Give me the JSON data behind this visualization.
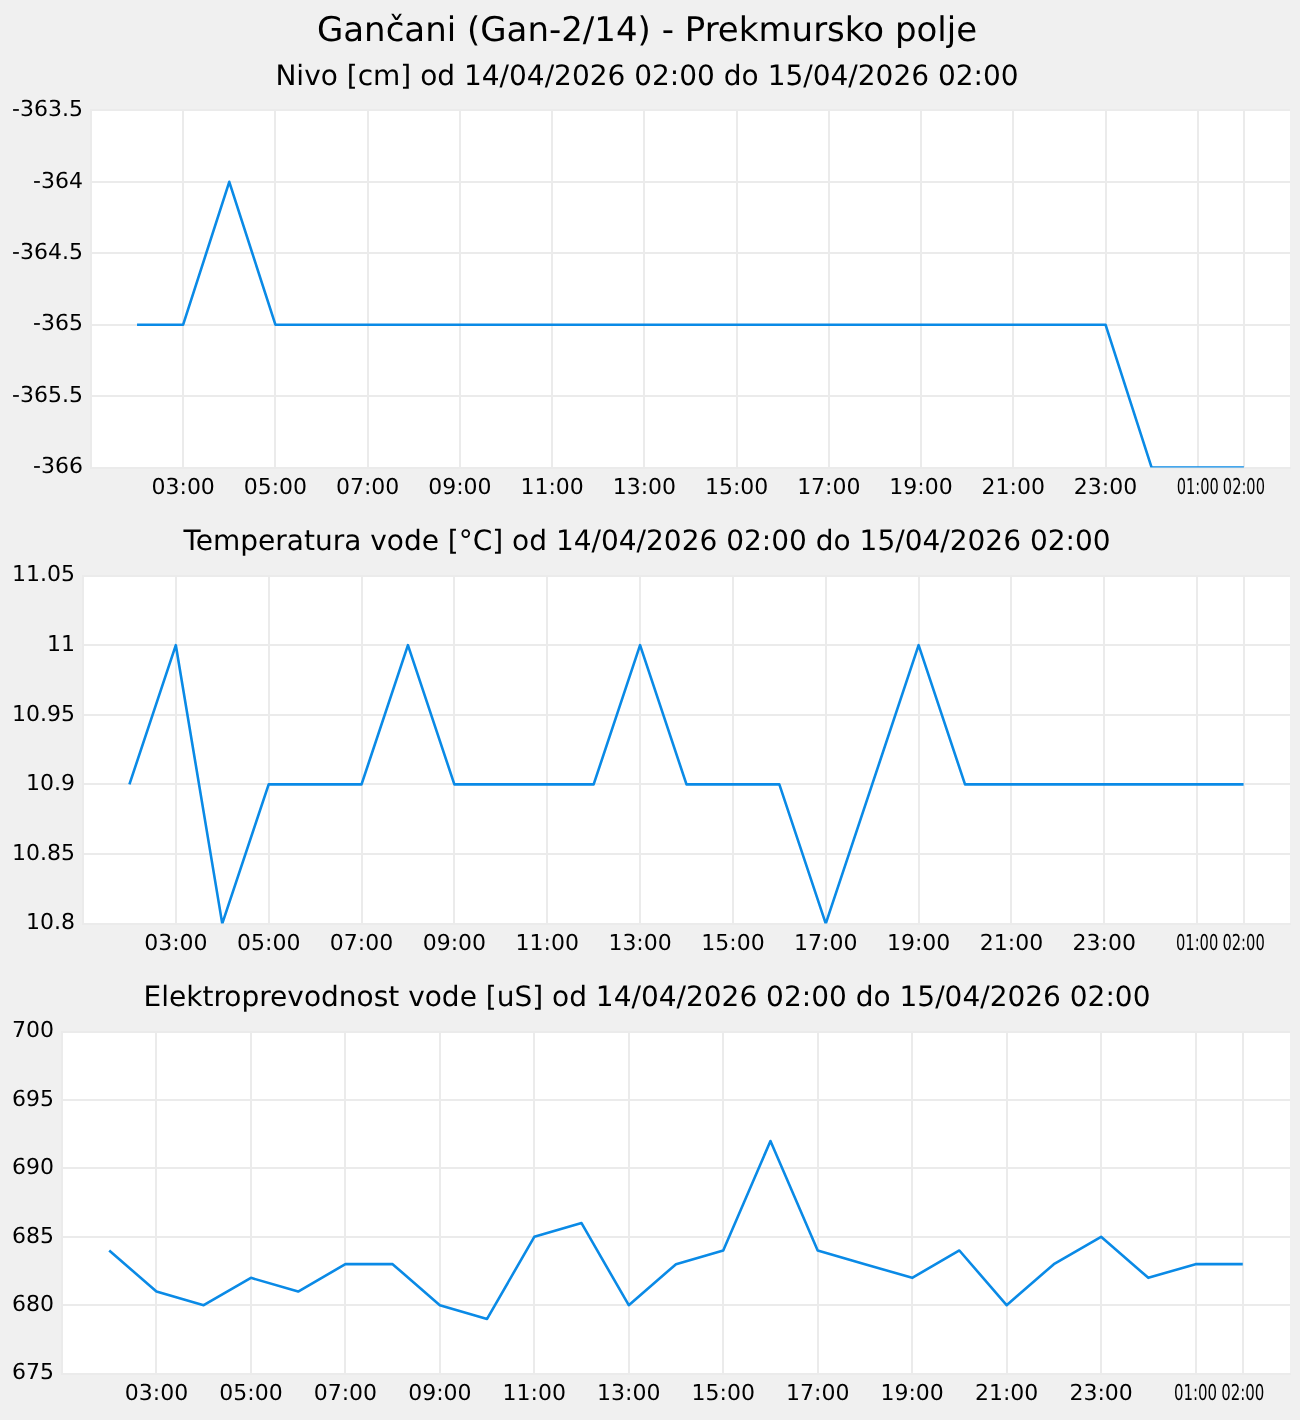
{
  "chart_data": [
    {
      "type": "line",
      "title": "Gančani (Gan-2/14) - Prekmursko polje",
      "subtitle": "Nivo [cm] od 14/04/2026 02:00 do 15/04/2026 02:00",
      "x": [
        "2026-04-14T02:00",
        "2026-04-14T03:00",
        "2026-04-14T04:00",
        "2026-04-14T05:00",
        "2026-04-14T06:00",
        "2026-04-14T07:00",
        "2026-04-14T08:00",
        "2026-04-14T09:00",
        "2026-04-14T10:00",
        "2026-04-14T11:00",
        "2026-04-14T12:00",
        "2026-04-14T13:00",
        "2026-04-14T14:00",
        "2026-04-14T15:00",
        "2026-04-14T16:00",
        "2026-04-14T17:00",
        "2026-04-14T18:00",
        "2026-04-14T19:00",
        "2026-04-14T20:00",
        "2026-04-14T21:00",
        "2026-04-14T22:00",
        "2026-04-14T23:00",
        "2026-04-15T00:00",
        "2026-04-15T01:00",
        "2026-04-15T02:00"
      ],
      "series": [
        {
          "color": "#0a8ae6",
          "values": [
            -365,
            -365,
            -364,
            -365,
            -365,
            -365,
            -365,
            -365,
            -365,
            -365,
            -365,
            -365,
            -365,
            -365,
            -365,
            -365,
            -365,
            -365,
            -365,
            -365,
            -365,
            -365,
            -366,
            -366,
            -366
          ]
        }
      ],
      "xlim": [
        "2026-04-14T01:00",
        "2026-04-15T03:00"
      ],
      "xticks": [
        {
          "value": "2026-04-14T03:00",
          "label": "03:00"
        },
        {
          "value": "2026-04-14T05:00",
          "label": "05:00"
        },
        {
          "value": "2026-04-14T07:00",
          "label": "07:00"
        },
        {
          "value": "2026-04-14T09:00",
          "label": "09:00"
        },
        {
          "value": "2026-04-14T11:00",
          "label": "11:00"
        },
        {
          "value": "2026-04-14T13:00",
          "label": "13:00"
        },
        {
          "value": "2026-04-14T15:00",
          "label": "15:00"
        },
        {
          "value": "2026-04-14T17:00",
          "label": "17:00"
        },
        {
          "value": "2026-04-14T19:00",
          "label": "19:00"
        },
        {
          "value": "2026-04-14T21:00",
          "label": "21:00"
        },
        {
          "value": "2026-04-14T23:00",
          "label": "23:00"
        },
        {
          "value": "2026-04-15T01:00",
          "label": "01:00"
        },
        {
          "value": "2026-04-15T02:00",
          "label": "02:00"
        }
      ],
      "ylim": [
        -366,
        -363.5
      ],
      "yticks": [
        -366,
        -365.5,
        -365,
        -364.5,
        -364,
        -363.5
      ],
      "grid": true,
      "legend": false,
      "marker": "none",
      "line_style": "solid"
    },
    {
      "type": "line",
      "title": "Temperatura vode [°C] od 14/04/2026 02:00 do 15/04/2026 02:00",
      "x": [
        "2026-04-14T02:00",
        "2026-04-14T03:00",
        "2026-04-14T04:00",
        "2026-04-14T05:00",
        "2026-04-14T06:00",
        "2026-04-14T07:00",
        "2026-04-14T08:00",
        "2026-04-14T09:00",
        "2026-04-14T10:00",
        "2026-04-14T11:00",
        "2026-04-14T12:00",
        "2026-04-14T13:00",
        "2026-04-14T14:00",
        "2026-04-14T15:00",
        "2026-04-14T16:00",
        "2026-04-14T17:00",
        "2026-04-14T18:00",
        "2026-04-14T19:00",
        "2026-04-14T20:00",
        "2026-04-14T21:00",
        "2026-04-14T22:00",
        "2026-04-14T23:00",
        "2026-04-15T00:00",
        "2026-04-15T01:00",
        "2026-04-15T02:00"
      ],
      "series": [
        {
          "color": "#0a8ae6",
          "values": [
            10.9,
            11,
            10.8,
            10.9,
            10.9,
            10.9,
            11,
            10.9,
            10.9,
            10.9,
            10.9,
            11,
            10.9,
            10.9,
            10.9,
            10.8,
            10.9,
            11,
            10.9,
            10.9,
            10.9,
            10.9,
            10.9,
            10.9,
            10.9
          ]
        }
      ],
      "xlim": [
        "2026-04-14T01:00",
        "2026-04-15T03:00"
      ],
      "xticks": [
        {
          "value": "2026-04-14T03:00",
          "label": "03:00"
        },
        {
          "value": "2026-04-14T05:00",
          "label": "05:00"
        },
        {
          "value": "2026-04-14T07:00",
          "label": "07:00"
        },
        {
          "value": "2026-04-14T09:00",
          "label": "09:00"
        },
        {
          "value": "2026-04-14T11:00",
          "label": "11:00"
        },
        {
          "value": "2026-04-14T13:00",
          "label": "13:00"
        },
        {
          "value": "2026-04-14T15:00",
          "label": "15:00"
        },
        {
          "value": "2026-04-14T17:00",
          "label": "17:00"
        },
        {
          "value": "2026-04-14T19:00",
          "label": "19:00"
        },
        {
          "value": "2026-04-14T21:00",
          "label": "21:00"
        },
        {
          "value": "2026-04-14T23:00",
          "label": "23:00"
        },
        {
          "value": "2026-04-15T01:00",
          "label": "01:00"
        },
        {
          "value": "2026-04-15T02:00",
          "label": "02:00"
        }
      ],
      "ylim": [
        10.8,
        11.05
      ],
      "yticks": [
        10.8,
        10.85,
        10.9,
        10.95,
        11,
        11.05
      ],
      "grid": true,
      "legend": false,
      "marker": "none",
      "line_style": "solid"
    },
    {
      "type": "line",
      "title": "Elektroprevodnost vode [uS] od 14/04/2026 02:00 do 15/04/2026 02:00",
      "x": [
        "2026-04-14T02:00",
        "2026-04-14T03:00",
        "2026-04-14T04:00",
        "2026-04-14T05:00",
        "2026-04-14T06:00",
        "2026-04-14T07:00",
        "2026-04-14T08:00",
        "2026-04-14T09:00",
        "2026-04-14T10:00",
        "2026-04-14T11:00",
        "2026-04-14T12:00",
        "2026-04-14T13:00",
        "2026-04-14T14:00",
        "2026-04-14T15:00",
        "2026-04-14T16:00",
        "2026-04-14T17:00",
        "2026-04-14T18:00",
        "2026-04-14T19:00",
        "2026-04-14T20:00",
        "2026-04-14T21:00",
        "2026-04-14T22:00",
        "2026-04-14T23:00",
        "2026-04-15T00:00",
        "2026-04-15T01:00",
        "2026-04-15T02:00"
      ],
      "series": [
        {
          "color": "#0a8ae6",
          "values": [
            684,
            681,
            680,
            682,
            681,
            683,
            683,
            680,
            679,
            685,
            686,
            680,
            683,
            684,
            692,
            684,
            683,
            682,
            684,
            680,
            683,
            685,
            682,
            683,
            683
          ]
        }
      ],
      "xlim": [
        "2026-04-14T01:00",
        "2026-04-15T03:00"
      ],
      "xticks": [
        {
          "value": "2026-04-14T03:00",
          "label": "03:00"
        },
        {
          "value": "2026-04-14T05:00",
          "label": "05:00"
        },
        {
          "value": "2026-04-14T07:00",
          "label": "07:00"
        },
        {
          "value": "2026-04-14T09:00",
          "label": "09:00"
        },
        {
          "value": "2026-04-14T11:00",
          "label": "11:00"
        },
        {
          "value": "2026-04-14T13:00",
          "label": "13:00"
        },
        {
          "value": "2026-04-14T15:00",
          "label": "15:00"
        },
        {
          "value": "2026-04-14T17:00",
          "label": "17:00"
        },
        {
          "value": "2026-04-14T19:00",
          "label": "19:00"
        },
        {
          "value": "2026-04-14T21:00",
          "label": "21:00"
        },
        {
          "value": "2026-04-14T23:00",
          "label": "23:00"
        },
        {
          "value": "2026-04-15T01:00",
          "label": "01:00"
        },
        {
          "value": "2026-04-15T02:00",
          "label": "02:00"
        }
      ],
      "ylim": [
        675,
        700
      ],
      "yticks": [
        675,
        680,
        685,
        690,
        695,
        700
      ],
      "grid": true,
      "legend": false,
      "marker": "none",
      "line_style": "solid"
    }
  ]
}
